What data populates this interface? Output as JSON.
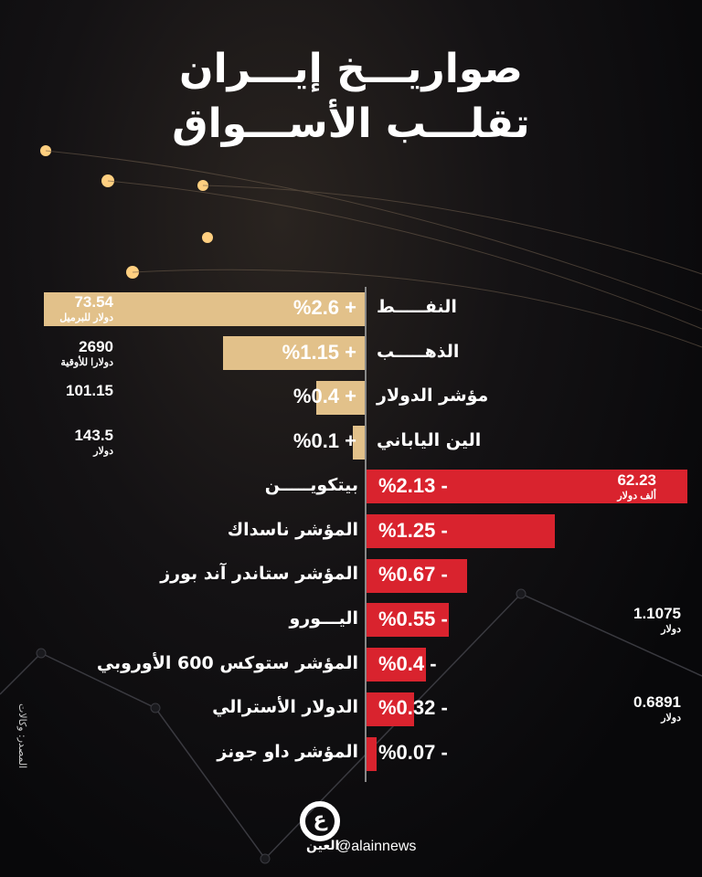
{
  "title": {
    "line1": "صواريـــخ إيـــران",
    "line2": "تقلـــب الأســـواق"
  },
  "source": "المصدر: وكالات",
  "brand": {
    "name": "العين",
    "handle": "@alainnews"
  },
  "colors": {
    "positive": "#e2c18a",
    "negative": "#d9232e",
    "background": "#0b0b0e"
  },
  "chart_data": {
    "type": "bar",
    "orientation": "horizontal-diverging",
    "categories": [
      "النفـــــط",
      "الذهـــــب",
      "مؤشر الدولار",
      "الين الياباني",
      "بيتكويـــــن",
      "المؤشر ناسداك",
      "المؤشر ستاندر آند بورز",
      "اليـــورو",
      "المؤشر ستوكس 600 الأوروبي",
      "الدولار الأسترالي",
      "المؤشر داو جونز"
    ],
    "values": [
      2.6,
      1.15,
      0.4,
      0.1,
      -2.13,
      -1.25,
      -0.67,
      -0.55,
      -0.4,
      -0.32,
      -0.07
    ],
    "labels": [
      "%2.6 +",
      "%1.15 +",
      "%0.4 +",
      "%0.1 +",
      "%2.13 -",
      "%1.25 -",
      "%0.67 -",
      "%0.55 -",
      "%0.4 -",
      "%0.32 -",
      "%0.07 -"
    ],
    "prices": [
      {
        "value": "73.54",
        "unit": "دولار للبرميل"
      },
      {
        "value": "2690",
        "unit": "دولارا للأوقية"
      },
      {
        "value": "101.15",
        "unit": ""
      },
      {
        "value": "143.5",
        "unit": "دولار"
      },
      {
        "value": "62.23",
        "unit": "ألف دولار"
      },
      null,
      null,
      {
        "value": "1.1075",
        "unit": "دولار"
      },
      null,
      {
        "value": "0.6891",
        "unit": "دولار"
      },
      null
    ]
  }
}
